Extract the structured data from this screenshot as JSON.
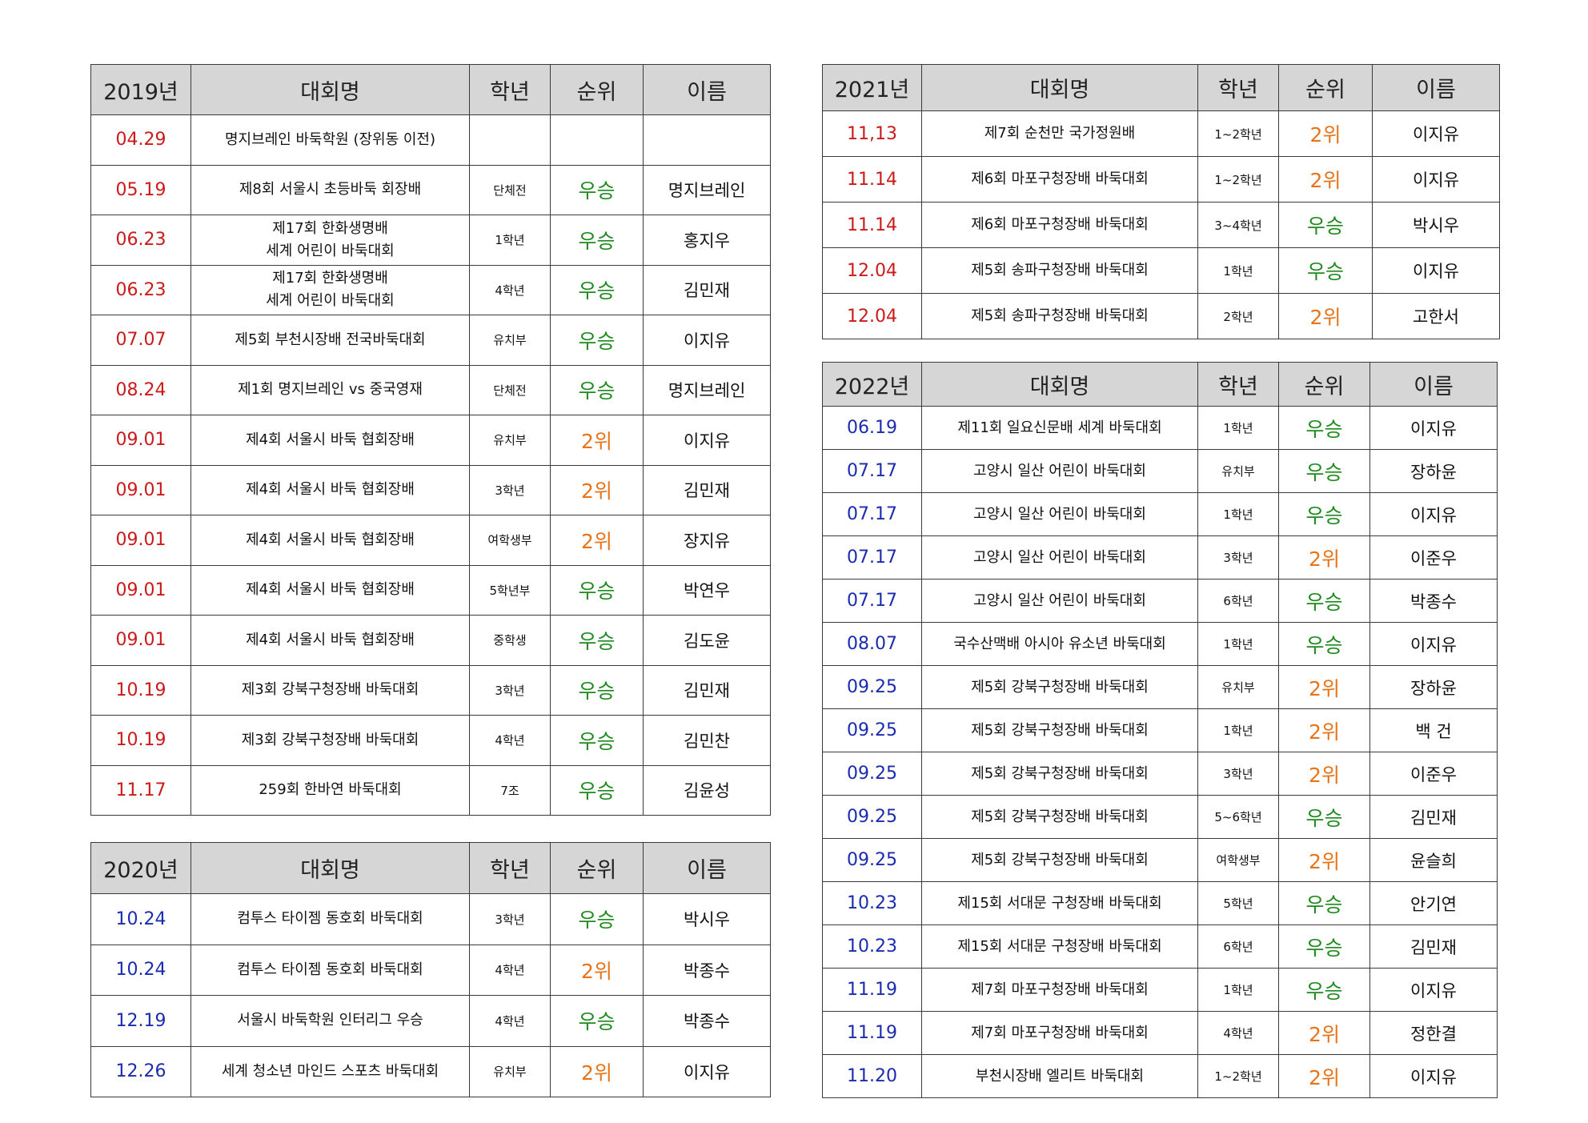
{
  "headers": {
    "competition": "대회명",
    "grade": "학년",
    "rank": "순위",
    "name": "이름"
  },
  "colors": {
    "year_red": "#cc1a1a",
    "year_blue": "#1a2bb0",
    "win": "#1e8a1e",
    "second": "#e8741a",
    "header_bg": "#d6d6d6"
  },
  "tables": {
    "y2019": {
      "year": "2019년",
      "rows": [
        {
          "date": "04.29",
          "competition": "명지브레인 바둑학원 (장위동 이전)",
          "grade": "",
          "rank": "",
          "name": ""
        },
        {
          "date": "05.19",
          "competition": "제8회 서울시 초등바둑 회장배",
          "grade": "단체전",
          "rank": "우승",
          "name": "명지브레인"
        },
        {
          "date": "06.23",
          "competition": "제17회 한화생명배\n세계 어린이 바둑대회",
          "grade": "1학년",
          "rank": "우승",
          "name": "홍지우"
        },
        {
          "date": "06.23",
          "competition": "제17회 한화생명배\n세계 어린이 바둑대회",
          "grade": "4학년",
          "rank": "우승",
          "name": "김민재"
        },
        {
          "date": "07.07",
          "competition": "제5회 부천시장배 전국바둑대회",
          "grade": "유치부",
          "rank": "우승",
          "name": "이지유"
        },
        {
          "date": "08.24",
          "competition": "제1회 명지브레인 vs 중국영재",
          "grade": "단체전",
          "rank": "우승",
          "name": "명지브레인"
        },
        {
          "date": "09.01",
          "competition": "제4회 서울시 바둑 협회장배",
          "grade": "유치부",
          "rank": "2위",
          "name": "이지유"
        },
        {
          "date": "09.01",
          "competition": "제4회 서울시 바둑 협회장배",
          "grade": "3학년",
          "rank": "2위",
          "name": "김민재"
        },
        {
          "date": "09.01",
          "competition": "제4회 서울시 바둑 협회장배",
          "grade": "여학생부",
          "rank": "2위",
          "name": "장지유"
        },
        {
          "date": "09.01",
          "competition": "제4회 서울시 바둑 협회장배",
          "grade": "5학년부",
          "rank": "우승",
          "name": "박연우"
        },
        {
          "date": "09.01",
          "competition": "제4회 서울시 바둑 협회장배",
          "grade": "중학생",
          "rank": "우승",
          "name": "김도윤"
        },
        {
          "date": "10.19",
          "competition": "제3회 강북구청장배 바둑대회",
          "grade": "3학년",
          "rank": "우승",
          "name": "김민재"
        },
        {
          "date": "10.19",
          "competition": "제3회 강북구청장배 바둑대회",
          "grade": "4학년",
          "rank": "우승",
          "name": "김민찬"
        },
        {
          "date": "11.17",
          "competition": "259회 한바연 바둑대회",
          "grade": "7조",
          "rank": "우승",
          "name": "김윤성"
        }
      ]
    },
    "y2020": {
      "year": "2020년",
      "rows": [
        {
          "date": "10.24",
          "competition": "컴투스 타이젬 동호회 바둑대회",
          "grade": "3학년",
          "rank": "우승",
          "name": "박시우"
        },
        {
          "date": "10.24",
          "competition": "컴투스 타이젬 동호회 바둑대회",
          "grade": "4학년",
          "rank": "2위",
          "name": "박종수"
        },
        {
          "date": "12.19",
          "competition": "서울시 바둑학원 인터리그 우승",
          "grade": "4학년",
          "rank": "우승",
          "name": "박종수"
        },
        {
          "date": "12.26",
          "competition": "세계 청소년 마인드 스포츠 바둑대회",
          "grade": "유치부",
          "rank": "2위",
          "name": "이지유"
        }
      ]
    },
    "y2021": {
      "year": "2021년",
      "rows": [
        {
          "date": "11,13",
          "competition": "제7회 순천만 국가정원배",
          "grade": "1~2학년",
          "rank": "2위",
          "name": "이지유"
        },
        {
          "date": "11.14",
          "competition": "제6회 마포구청장배 바둑대회",
          "grade": "1~2학년",
          "rank": "2위",
          "name": "이지유"
        },
        {
          "date": "11.14",
          "competition": "제6회 마포구청장배 바둑대회",
          "grade": "3~4학년",
          "rank": "우승",
          "name": "박시우"
        },
        {
          "date": "12.04",
          "competition": "제5회 송파구청장배 바둑대회",
          "grade": "1학년",
          "rank": "우승",
          "name": "이지유"
        },
        {
          "date": "12.04",
          "competition": "제5회 송파구청장배 바둑대회",
          "grade": "2학년",
          "rank": "2위",
          "name": "고한서"
        }
      ]
    },
    "y2022": {
      "year": "2022년",
      "rows": [
        {
          "date": "06.19",
          "competition": "제11회 일요신문배 세계 바둑대회",
          "grade": "1학년",
          "rank": "우승",
          "name": "이지유"
        },
        {
          "date": "07.17",
          "competition": "고양시 일산 어린이 바둑대회",
          "grade": "유치부",
          "rank": "우승",
          "name": "장하윤"
        },
        {
          "date": "07.17",
          "competition": "고양시 일산 어린이 바둑대회",
          "grade": "1학년",
          "rank": "우승",
          "name": "이지유"
        },
        {
          "date": "07.17",
          "competition": "고양시 일산 어린이 바둑대회",
          "grade": "3학년",
          "rank": "2위",
          "name": "이준우"
        },
        {
          "date": "07.17",
          "competition": "고양시 일산 어린이 바둑대회",
          "grade": "6학년",
          "rank": "우승",
          "name": "박종수"
        },
        {
          "date": "08.07",
          "competition": "국수산맥배 아시아 유소년 바둑대회",
          "grade": "1학년",
          "rank": "우승",
          "name": "이지유"
        },
        {
          "date": "09.25",
          "competition": "제5회 강북구청장배 바둑대회",
          "grade": "유치부",
          "rank": "2위",
          "name": "장하윤"
        },
        {
          "date": "09.25",
          "competition": "제5회 강북구청장배 바둑대회",
          "grade": "1학년",
          "rank": "2위",
          "name": "백 건"
        },
        {
          "date": "09.25",
          "competition": "제5회 강북구청장배 바둑대회",
          "grade": "3학년",
          "rank": "2위",
          "name": "이준우"
        },
        {
          "date": "09.25",
          "competition": "제5회 강북구청장배 바둑대회",
          "grade": "5~6학년",
          "rank": "우승",
          "name": "김민재"
        },
        {
          "date": "09.25",
          "competition": "제5회 강북구청장배 바둑대회",
          "grade": "여학생부",
          "rank": "2위",
          "name": "윤슬희"
        },
        {
          "date": "10.23",
          "competition": "제15회 서대문 구청장배 바둑대회",
          "grade": "5학년",
          "rank": "우승",
          "name": "안기연"
        },
        {
          "date": "10.23",
          "competition": "제15회 서대문 구청장배 바둑대회",
          "grade": "6학년",
          "rank": "우승",
          "name": "김민재"
        },
        {
          "date": "11.19",
          "competition": "제7회 마포구청장배 바둑대회",
          "grade": "1학년",
          "rank": "우승",
          "name": "이지유"
        },
        {
          "date": "11.19",
          "competition": "제7회 마포구청장배 바둑대회",
          "grade": "4학년",
          "rank": "2위",
          "name": "정한결"
        },
        {
          "date": "11.20",
          "competition": "부천시장배 엘리트 바둑대회",
          "grade": "1~2학년",
          "rank": "2위",
          "name": "이지유"
        }
      ]
    }
  }
}
